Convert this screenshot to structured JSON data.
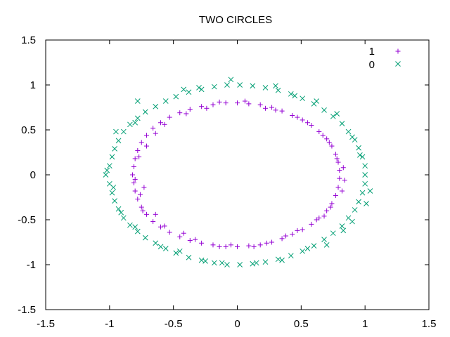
{
  "chart_data": {
    "type": "scatter",
    "title": "TWO CIRCLES",
    "xlabel": "",
    "ylabel": "",
    "xlim": [
      -1.5,
      1.5
    ],
    "ylim": [
      -1.5,
      1.5
    ],
    "x_ticks": [
      "-1.5",
      "-1",
      "-0.5",
      "0",
      "0.5",
      "1",
      "1.5"
    ],
    "y_ticks": [
      "1.5",
      "1",
      "0.5",
      "0",
      "-0.5",
      "-1",
      "-1.5"
    ],
    "grid": false,
    "legend_position": "top-right",
    "series": [
      {
        "name": "1",
        "marker": "plus",
        "color": "#9400d3",
        "points": [
          [
            -0.82,
            0.0
          ],
          [
            -0.81,
            0.09
          ],
          [
            -0.8,
            0.18
          ],
          [
            -0.78,
            0.27
          ],
          [
            -0.75,
            0.36
          ],
          [
            -0.71,
            0.44
          ],
          [
            -0.66,
            0.52
          ],
          [
            -0.6,
            0.58
          ],
          [
            -0.53,
            0.64
          ],
          [
            -0.45,
            0.69
          ],
          [
            -0.37,
            0.73
          ],
          [
            -0.28,
            0.76
          ],
          [
            -0.19,
            0.78
          ],
          [
            -0.09,
            0.8
          ],
          [
            0.0,
            0.8
          ],
          [
            0.09,
            0.79
          ],
          [
            0.18,
            0.78
          ],
          [
            0.27,
            0.75
          ],
          [
            0.35,
            0.71
          ],
          [
            0.43,
            0.66
          ],
          [
            0.51,
            0.61
          ],
          [
            0.58,
            0.55
          ],
          [
            0.64,
            0.48
          ],
          [
            0.7,
            0.4
          ],
          [
            0.74,
            0.32
          ],
          [
            0.77,
            0.23
          ],
          [
            0.79,
            0.14
          ],
          [
            0.8,
            0.05
          ],
          [
            0.8,
            -0.04
          ],
          [
            0.79,
            -0.14
          ],
          [
            0.77,
            -0.23
          ],
          [
            0.74,
            -0.32
          ],
          [
            0.7,
            -0.4
          ],
          [
            0.64,
            -0.48
          ],
          [
            0.58,
            -0.55
          ],
          [
            0.51,
            -0.61
          ],
          [
            0.43,
            -0.66
          ],
          [
            0.35,
            -0.71
          ],
          [
            0.27,
            -0.75
          ],
          [
            0.18,
            -0.78
          ],
          [
            0.09,
            -0.79
          ],
          [
            0.0,
            -0.8
          ],
          [
            -0.09,
            -0.8
          ],
          [
            -0.19,
            -0.78
          ],
          [
            -0.28,
            -0.76
          ],
          [
            -0.37,
            -0.73
          ],
          [
            -0.45,
            -0.69
          ],
          [
            -0.53,
            -0.64
          ],
          [
            -0.6,
            -0.58
          ],
          [
            -0.66,
            -0.52
          ],
          [
            -0.71,
            -0.44
          ],
          [
            -0.75,
            -0.36
          ],
          [
            -0.78,
            -0.27
          ],
          [
            -0.8,
            -0.18
          ],
          [
            -0.81,
            -0.09
          ],
          [
            -0.77,
            0.2
          ],
          [
            -0.71,
            0.32
          ],
          [
            -0.64,
            0.46
          ],
          [
            -0.57,
            0.56
          ],
          [
            -0.4,
            0.68
          ],
          [
            -0.24,
            0.74
          ],
          [
            -0.14,
            0.81
          ],
          [
            0.06,
            0.82
          ],
          [
            0.22,
            0.74
          ],
          [
            0.3,
            0.72
          ],
          [
            0.47,
            0.64
          ],
          [
            0.55,
            0.58
          ],
          [
            0.67,
            0.44
          ],
          [
            0.72,
            0.36
          ],
          [
            0.78,
            0.18
          ],
          [
            0.83,
            0.08
          ],
          [
            0.84,
            -0.06
          ],
          [
            0.82,
            -0.18
          ],
          [
            0.73,
            -0.36
          ],
          [
            0.68,
            -0.46
          ],
          [
            0.62,
            -0.5
          ],
          [
            0.47,
            -0.62
          ],
          [
            0.38,
            -0.68
          ],
          [
            0.23,
            -0.76
          ],
          [
            0.13,
            -0.8
          ],
          [
            -0.05,
            -0.78
          ],
          [
            -0.14,
            -0.8
          ],
          [
            -0.33,
            -0.72
          ],
          [
            -0.42,
            -0.65
          ],
          [
            -0.57,
            -0.57
          ],
          [
            -0.64,
            -0.44
          ],
          [
            -0.74,
            -0.4
          ],
          [
            -0.76,
            -0.22
          ],
          [
            -0.73,
            -0.14
          ],
          [
            -0.8,
            -0.05
          ]
        ]
      },
      {
        "name": "0",
        "marker": "cross",
        "color": "#009e73",
        "points": [
          [
            -1.0,
            0.1
          ],
          [
            -0.98,
            0.2
          ],
          [
            -0.96,
            0.29
          ],
          [
            -0.93,
            0.38
          ],
          [
            -0.89,
            0.48
          ],
          [
            -0.84,
            0.56
          ],
          [
            -0.78,
            0.63
          ],
          [
            -0.72,
            0.7
          ],
          [
            -0.64,
            0.76
          ],
          [
            -0.56,
            0.82
          ],
          [
            -0.48,
            0.87
          ],
          [
            -0.38,
            0.92
          ],
          [
            -0.28,
            0.95
          ],
          [
            -0.18,
            0.98
          ],
          [
            -0.08,
            1.0
          ],
          [
            0.02,
            1.0
          ],
          [
            0.12,
            0.99
          ],
          [
            0.22,
            0.97
          ],
          [
            0.32,
            0.94
          ],
          [
            0.42,
            0.9
          ],
          [
            0.51,
            0.85
          ],
          [
            0.6,
            0.79
          ],
          [
            0.68,
            0.72
          ],
          [
            0.75,
            0.65
          ],
          [
            0.82,
            0.57
          ],
          [
            0.87,
            0.48
          ],
          [
            0.92,
            0.39
          ],
          [
            0.95,
            0.3
          ],
          [
            0.98,
            0.2
          ],
          [
            1.0,
            0.1
          ],
          [
            1.0,
            0.0
          ],
          [
            1.0,
            -0.1
          ],
          [
            0.98,
            -0.2
          ],
          [
            0.95,
            -0.3
          ],
          [
            0.92,
            -0.39
          ],
          [
            0.87,
            -0.48
          ],
          [
            0.82,
            -0.57
          ],
          [
            0.75,
            -0.65
          ],
          [
            0.68,
            -0.72
          ],
          [
            0.6,
            -0.79
          ],
          [
            0.51,
            -0.85
          ],
          [
            0.42,
            -0.9
          ],
          [
            0.32,
            -0.94
          ],
          [
            0.22,
            -0.97
          ],
          [
            0.12,
            -0.99
          ],
          [
            0.02,
            -1.0
          ],
          [
            -0.08,
            -1.0
          ],
          [
            -0.18,
            -0.98
          ],
          [
            -0.28,
            -0.95
          ],
          [
            -0.38,
            -0.92
          ],
          [
            -0.48,
            -0.87
          ],
          [
            -0.56,
            -0.82
          ],
          [
            -0.64,
            -0.76
          ],
          [
            -0.72,
            -0.7
          ],
          [
            -0.78,
            -0.63
          ],
          [
            -0.84,
            -0.56
          ],
          [
            -0.89,
            -0.48
          ],
          [
            -0.93,
            -0.38
          ],
          [
            -0.96,
            -0.29
          ],
          [
            -0.98,
            -0.2
          ],
          [
            -1.0,
            -0.1
          ],
          [
            -1.02,
            0.05
          ],
          [
            -0.95,
            0.48
          ],
          [
            -0.78,
            0.82
          ],
          [
            -0.8,
            0.58
          ],
          [
            -0.42,
            0.95
          ],
          [
            -0.3,
            0.97
          ],
          [
            -0.05,
            1.06
          ],
          [
            0.3,
            0.99
          ],
          [
            0.45,
            0.88
          ],
          [
            0.62,
            0.82
          ],
          [
            0.78,
            0.68
          ],
          [
            0.9,
            0.42
          ],
          [
            0.96,
            0.22
          ],
          [
            1.04,
            -0.18
          ],
          [
            1.01,
            -0.32
          ],
          [
            0.9,
            -0.52
          ],
          [
            0.83,
            -0.62
          ],
          [
            0.7,
            -0.78
          ],
          [
            0.55,
            -0.82
          ],
          [
            0.35,
            -0.95
          ],
          [
            0.15,
            -0.98
          ],
          [
            -0.12,
            -0.98
          ],
          [
            -0.25,
            -0.96
          ],
          [
            -0.45,
            -0.85
          ],
          [
            -0.6,
            -0.8
          ],
          [
            -0.8,
            -0.58
          ],
          [
            -0.91,
            -0.42
          ],
          [
            -0.97,
            -0.14
          ],
          [
            -1.03,
            0.0
          ]
        ]
      }
    ]
  }
}
